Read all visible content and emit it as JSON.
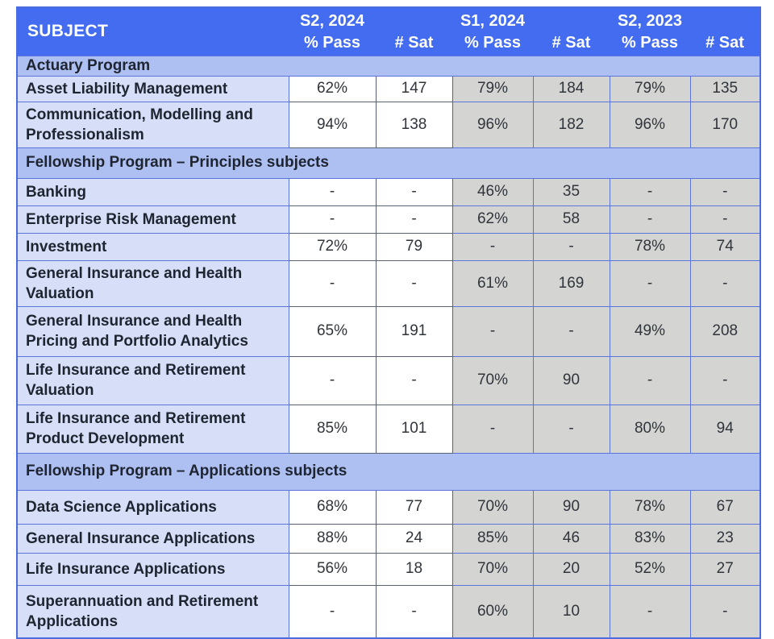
{
  "colors": {
    "header-bg": "#436cf0",
    "section-bg": "#aebff2",
    "subject-bg": "#d6def8",
    "gray-bg": "#d4d4d2",
    "border-blue": "#5b74d9",
    "outer-border": "#4a6cdf",
    "white-cell-border": "#5a6170"
  },
  "table": {
    "header": {
      "subject": "SUBJECT",
      "sessions": [
        {
          "label": "S2, 2024",
          "pass": "% Pass",
          "sat": "# Sat"
        },
        {
          "label": "S1, 2024",
          "pass": "% Pass",
          "sat": "# Sat"
        },
        {
          "label": "S2, 2023",
          "pass": "% Pass",
          "sat": "# Sat"
        }
      ]
    },
    "sections": [
      {
        "title": "Actuary Program",
        "rows": [
          {
            "subject": "Asset Liability Management",
            "values": [
              "62%",
              "147",
              "79%",
              "184",
              "79%",
              "135"
            ]
          },
          {
            "subject": "Communication, Modelling and Professionalism",
            "values": [
              "94%",
              "138",
              "96%",
              "182",
              "96%",
              "170"
            ]
          }
        ]
      },
      {
        "title": "Fellowship Program – Principles subjects",
        "rows": [
          {
            "subject": "Banking",
            "values": [
              "-",
              "-",
              "46%",
              "35",
              "-",
              "-"
            ]
          },
          {
            "subject": "Enterprise Risk Management",
            "values": [
              "-",
              "-",
              "62%",
              "58",
              "-",
              "-"
            ]
          },
          {
            "subject": "Investment",
            "values": [
              "72%",
              "79",
              "-",
              "-",
              "78%",
              "74"
            ]
          },
          {
            "subject": "General Insurance and Health Valuation",
            "values": [
              "-",
              "-",
              "61%",
              "169",
              "-",
              "-"
            ]
          },
          {
            "subject": "General Insurance and Health Pricing and Portfolio Analytics",
            "values": [
              "65%",
              "191",
              "-",
              "-",
              "49%",
              "208"
            ]
          },
          {
            "subject": "Life Insurance and Retirement Valuation",
            "values": [
              "-",
              "-",
              "70%",
              "90",
              "-",
              "-"
            ]
          },
          {
            "subject": "Life Insurance and Retirement Product Development",
            "values": [
              "85%",
              "101",
              "-",
              "-",
              "80%",
              "94"
            ]
          }
        ]
      },
      {
        "title": "Fellowship Program – Applications subjects",
        "rows": [
          {
            "subject": "Data Science Applications",
            "values": [
              "68%",
              "77",
              "70%",
              "90",
              "78%",
              "67"
            ]
          },
          {
            "subject": "General Insurance Applications",
            "values": [
              "88%",
              "24",
              "85%",
              "46",
              "83%",
              "23"
            ]
          },
          {
            "subject": "Life Insurance Applications",
            "values": [
              "56%",
              "18",
              "70%",
              "20",
              "52%",
              "27"
            ]
          },
          {
            "subject": "Superannuation and Retirement Applications",
            "values": [
              "-",
              "-",
              "60%",
              "10",
              "-",
              "-"
            ]
          }
        ]
      }
    ]
  }
}
